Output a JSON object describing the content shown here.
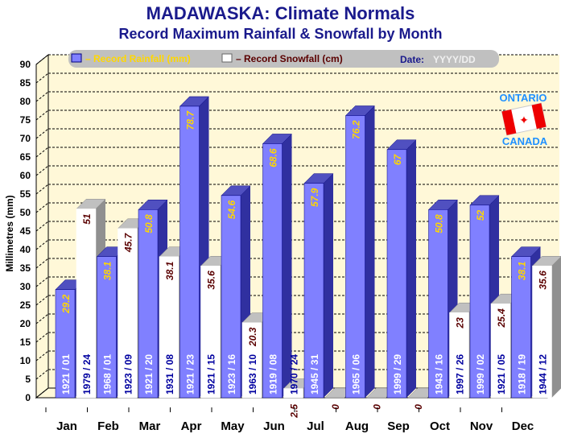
{
  "chart_data": {
    "type": "bar",
    "title": "MADAWASKA: Climate Normals",
    "subtitle": "Record Maximum Rainfall & Snowfall by Month",
    "ylabel": "Millimetres (mm)",
    "ylim": [
      0,
      90
    ],
    "yticks": [
      0,
      5,
      10,
      15,
      20,
      25,
      30,
      35,
      40,
      45,
      50,
      55,
      60,
      65,
      70,
      75,
      80,
      85,
      90
    ],
    "grid": true,
    "legend_placement": "top",
    "categories": [
      "Jan",
      "Feb",
      "Mar",
      "Apr",
      "May",
      "Jun",
      "Jul",
      "Aug",
      "Sep",
      "Oct",
      "Nov",
      "Dec"
    ],
    "series": [
      {
        "name": "– Record Rainfall (mm)",
        "color": "#8080ff",
        "label_color": "#ffd700",
        "values": [
          29.2,
          38.1,
          50.8,
          78.7,
          54.6,
          68.6,
          57.9,
          76.2,
          67,
          50.8,
          52,
          38.1
        ],
        "labels": [
          "29.2",
          "38.1",
          "50.8",
          "78.7",
          "54.6",
          "68.6",
          "57.9",
          "76.2",
          "67",
          "50.8",
          "52",
          "38.1"
        ],
        "dates": [
          "1921 / 01",
          "1968 / 01",
          "1921 / 20",
          "1921 / 23",
          "1923 / 16",
          "1919 / 08",
          "1945 / 31",
          "1965 / 06",
          "1999 / 29",
          "1943 / 16",
          "1999 / 02",
          "1918 / 19"
        ]
      },
      {
        "name": "– Record Snowfall (cm)",
        "color": "#ffffff",
        "label_color": "#5a0000",
        "values": [
          51,
          45.7,
          38.1,
          35.6,
          20.3,
          2.5,
          0,
          0,
          0,
          23,
          25.4,
          35.6
        ],
        "labels": [
          "51",
          "45.7",
          "38.1",
          "35.6",
          "20.3",
          "2.5",
          "0",
          "0",
          "0",
          "23",
          "25.4",
          "35.6"
        ],
        "dates": [
          "1979 / 24",
          "1923 / 09",
          "1931 / 08",
          "1921 / 15",
          "1963 / 10",
          "1970 / 24",
          "",
          "",
          "",
          "1997 / 26",
          "1921 / 05",
          "1944 / 12"
        ]
      }
    ],
    "legend_date_label": "Date:",
    "legend_date_format": "YYYY/DD"
  },
  "logo": {
    "top": "ONTARIO",
    "bottom": "CANADA"
  }
}
